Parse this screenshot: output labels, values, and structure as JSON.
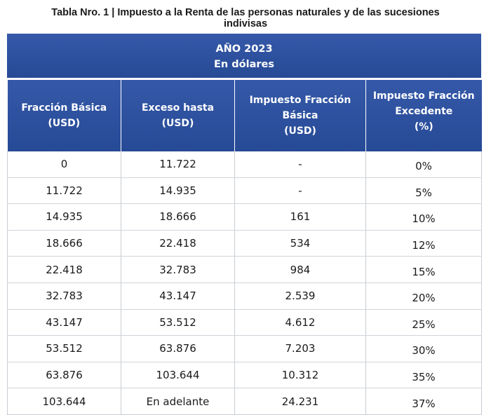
{
  "title": {
    "line1": "Tabla Nro. 1 | Impuesto a la Renta de las personas naturales y de las sucesiones",
    "line2": "indivisas"
  },
  "banner": {
    "line1": "AÑO 2023",
    "line2": "En dólares"
  },
  "colors": {
    "header_bg": "#2d519f",
    "header_text": "#ffffff",
    "body_text": "#1a1a1a"
  },
  "columns": [
    {
      "line1": "Fracción Básica",
      "line2": "(USD)",
      "line3": ""
    },
    {
      "line1": "Exceso hasta",
      "line2": "(USD)",
      "line3": ""
    },
    {
      "line1": "Impuesto Fracción Básica",
      "line2": "(USD)",
      "line3": ""
    },
    {
      "line1": "Impuesto Fracción",
      "line2": "Excedente",
      "line3": "(%)"
    }
  ],
  "rows": [
    [
      "0",
      "11.722",
      "-",
      "0%"
    ],
    [
      "11.722",
      "14.935",
      "-",
      "5%"
    ],
    [
      "14.935",
      "18.666",
      "161",
      "10%"
    ],
    [
      "18.666",
      "22.418",
      "534",
      "12%"
    ],
    [
      "22.418",
      "32.783",
      "984",
      "15%"
    ],
    [
      "32.783",
      "43.147",
      "2.539",
      "20%"
    ],
    [
      "43.147",
      "53.512",
      "4.612",
      "25%"
    ],
    [
      "53.512",
      "63.876",
      "7.203",
      "30%"
    ],
    [
      "63.876",
      "103.644",
      "10.312",
      "35%"
    ],
    [
      "103.644",
      "En adelante",
      "24.231",
      "37%"
    ]
  ]
}
